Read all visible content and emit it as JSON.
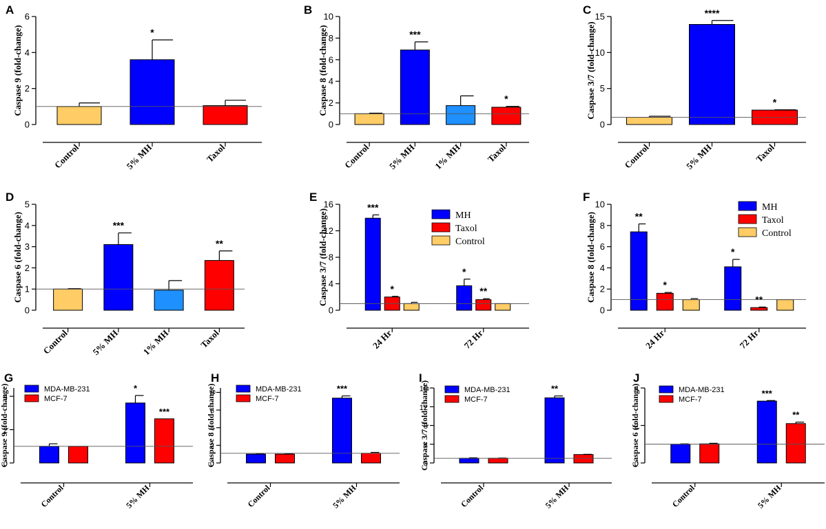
{
  "colors": {
    "mh": "#0000ff",
    "taxol": "#ff0000",
    "control": "#ffcc66",
    "mh1": "#1e90ff",
    "mda": "#0000ff",
    "mcf": "#ff0000"
  },
  "chart_data": [
    {
      "letter": "A",
      "type": "bar",
      "ylabel": "Caspase 9 (fold-change)",
      "ylim": [
        0,
        6
      ],
      "yticks": [
        0,
        2,
        4,
        6
      ],
      "categories": [
        "Control",
        "5% MH",
        "Taxol"
      ],
      "values": [
        1.0,
        3.6,
        1.05
      ],
      "errors": [
        0.2,
        1.1,
        0.3
      ],
      "colors": [
        "#ffcc66",
        "#0000ff",
        "#ff0000"
      ],
      "stars": [
        "",
        "*",
        ""
      ],
      "baseline": 1
    },
    {
      "letter": "B",
      "type": "bar",
      "ylabel": "Caspase 8 (fold-change)",
      "ylim": [
        0,
        10
      ],
      "yticks": [
        0,
        2,
        4,
        6,
        8,
        10
      ],
      "categories": [
        "Control",
        "5% MH",
        "1% MH",
        "Taxol"
      ],
      "values": [
        1.0,
        6.9,
        1.75,
        1.6
      ],
      "errors": [
        0.05,
        0.75,
        0.9,
        0.08
      ],
      "colors": [
        "#ffcc66",
        "#0000ff",
        "#1e90ff",
        "#ff0000"
      ],
      "stars": [
        "",
        "***",
        "",
        "*"
      ],
      "baseline": 1
    },
    {
      "letter": "C",
      "type": "bar",
      "ylabel": "Caspase 3/7 (fold-change)",
      "ylim": [
        0,
        15
      ],
      "yticks": [
        0,
        5,
        10,
        15
      ],
      "categories": [
        "Control",
        "5% MH",
        "Taxol"
      ],
      "values": [
        1.0,
        13.9,
        2.0
      ],
      "errors": [
        0.15,
        0.55,
        0.05
      ],
      "colors": [
        "#ffcc66",
        "#0000ff",
        "#ff0000"
      ],
      "stars": [
        "",
        "****",
        "*"
      ],
      "baseline": 1
    },
    {
      "letter": "D",
      "type": "bar",
      "ylabel": "Caspase 6 (fold-change)",
      "ylim": [
        0,
        5
      ],
      "yticks": [
        0,
        1,
        2,
        3,
        4,
        5
      ],
      "categories": [
        "Control",
        "5% MH",
        "1% MH",
        "Taxol"
      ],
      "values": [
        1.0,
        3.1,
        0.95,
        2.35
      ],
      "errors": [
        0.02,
        0.55,
        0.45,
        0.45
      ],
      "colors": [
        "#ffcc66",
        "#0000ff",
        "#1e90ff",
        "#ff0000"
      ],
      "stars": [
        "",
        "***",
        "",
        "**"
      ],
      "baseline": 1
    },
    {
      "letter": "E",
      "type": "bar",
      "ylabel": "Caspase 3/7 (fold-change)",
      "ylim": [
        0,
        16
      ],
      "yticks": [
        0,
        4,
        8,
        12,
        16
      ],
      "categories": [
        "24 Hr",
        "72 Hr"
      ],
      "series": [
        {
          "name": "MH",
          "color": "#0000ff",
          "values": [
            13.9,
            3.7
          ],
          "errors": [
            0.5,
            1.0
          ],
          "stars": [
            "***",
            "*"
          ]
        },
        {
          "name": "Taxol",
          "color": "#ff0000",
          "values": [
            2.0,
            1.6
          ],
          "errors": [
            0.1,
            0.15
          ],
          "stars": [
            "*",
            "**"
          ]
        },
        {
          "name": "Control",
          "color": "#ffcc66",
          "values": [
            1.0,
            1.0
          ],
          "errors": [
            0.2,
            0.0
          ],
          "stars": [
            "",
            ""
          ]
        }
      ],
      "baseline": 1,
      "legend": "top-right"
    },
    {
      "letter": "F",
      "type": "bar",
      "ylabel": "Caspase 8 (fold-change)",
      "ylim": [
        0,
        10
      ],
      "yticks": [
        0,
        2,
        4,
        6,
        8,
        10
      ],
      "categories": [
        "24 Hr",
        "72 Hr"
      ],
      "series": [
        {
          "name": "MH",
          "color": "#0000ff",
          "values": [
            7.4,
            4.1
          ],
          "errors": [
            0.75,
            0.7
          ],
          "stars": [
            "**",
            "*"
          ]
        },
        {
          "name": "Taxol",
          "color": "#ff0000",
          "values": [
            1.6,
            0.25
          ],
          "errors": [
            0.08,
            0.05
          ],
          "stars": [
            "*",
            "**"
          ]
        },
        {
          "name": "Control",
          "color": "#ffcc66",
          "values": [
            1.0,
            1.0
          ],
          "errors": [
            0.1,
            0.0
          ],
          "stars": [
            "",
            ""
          ]
        }
      ],
      "baseline": 1,
      "legend": "top-right"
    },
    {
      "letter": "G",
      "type": "bar",
      "ylabel": "Caspase 9 (fold-change)",
      "ylim": [
        0,
        4.5
      ],
      "yticks": [
        0,
        2,
        4
      ],
      "categories": [
        "Control",
        "5% MH"
      ],
      "series": [
        {
          "name": "MDA-MB-231",
          "color": "#0000ff",
          "values": [
            1.0,
            3.6
          ],
          "errors": [
            0.15,
            0.45
          ],
          "stars": [
            "",
            "*"
          ]
        },
        {
          "name": "MCF-7",
          "color": "#ff0000",
          "values": [
            1.0,
            2.65
          ],
          "errors": [
            0.0,
            0.0
          ],
          "stars": [
            "",
            "***"
          ]
        }
      ],
      "baseline": 1,
      "legend": "top-left"
    },
    {
      "letter": "H",
      "type": "bar",
      "ylabel": "Caspase 8 (fold-change)",
      "ylim": [
        0,
        8.5
      ],
      "yticks": [
        0,
        2,
        4,
        6,
        8
      ],
      "categories": [
        "Control",
        "5% MH"
      ],
      "series": [
        {
          "name": "MDA-MB-231",
          "color": "#0000ff",
          "values": [
            1.0,
            7.35
          ],
          "errors": [
            0.05,
            0.25
          ],
          "stars": [
            "",
            "***"
          ]
        },
        {
          "name": "MCF-7",
          "color": "#ff0000",
          "values": [
            1.0,
            1.1
          ],
          "errors": [
            0.05,
            0.1
          ],
          "stars": [
            "",
            ""
          ]
        }
      ],
      "baseline": 1.1,
      "legend": "top-left"
    },
    {
      "letter": "I",
      "type": "bar",
      "ylabel": "Caspase 3/7 (fold-change)",
      "ylim": [
        0,
        16
      ],
      "yticks": [
        0,
        4,
        8,
        12,
        16
      ],
      "categories": [
        "Control",
        "5% MH"
      ],
      "series": [
        {
          "name": "MDA-MB-231",
          "color": "#0000ff",
          "values": [
            1.0,
            13.9
          ],
          "errors": [
            0.1,
            0.4
          ],
          "stars": [
            "",
            "**"
          ]
        },
        {
          "name": "MCF-7",
          "color": "#ff0000",
          "values": [
            1.0,
            1.8
          ],
          "errors": [
            0.05,
            0.05
          ],
          "stars": [
            "",
            ""
          ]
        }
      ],
      "baseline": 1,
      "legend": "top-left"
    },
    {
      "letter": "J",
      "type": "bar",
      "ylabel": "Caspase 6 (fold-change)",
      "ylim": [
        0,
        4
      ],
      "yticks": [
        0,
        2,
        4
      ],
      "categories": [
        "Control",
        "5% MH"
      ],
      "series": [
        {
          "name": "MDA-MB-231",
          "color": "#0000ff",
          "values": [
            1.0,
            3.3
          ],
          "errors": [
            0.02,
            0.03
          ],
          "stars": [
            "",
            "***"
          ]
        },
        {
          "name": "MCF-7",
          "color": "#ff0000",
          "values": [
            1.02,
            2.1
          ],
          "errors": [
            0.03,
            0.08
          ],
          "stars": [
            "",
            "**"
          ]
        }
      ],
      "baseline": 1,
      "legend": "top-left"
    }
  ]
}
